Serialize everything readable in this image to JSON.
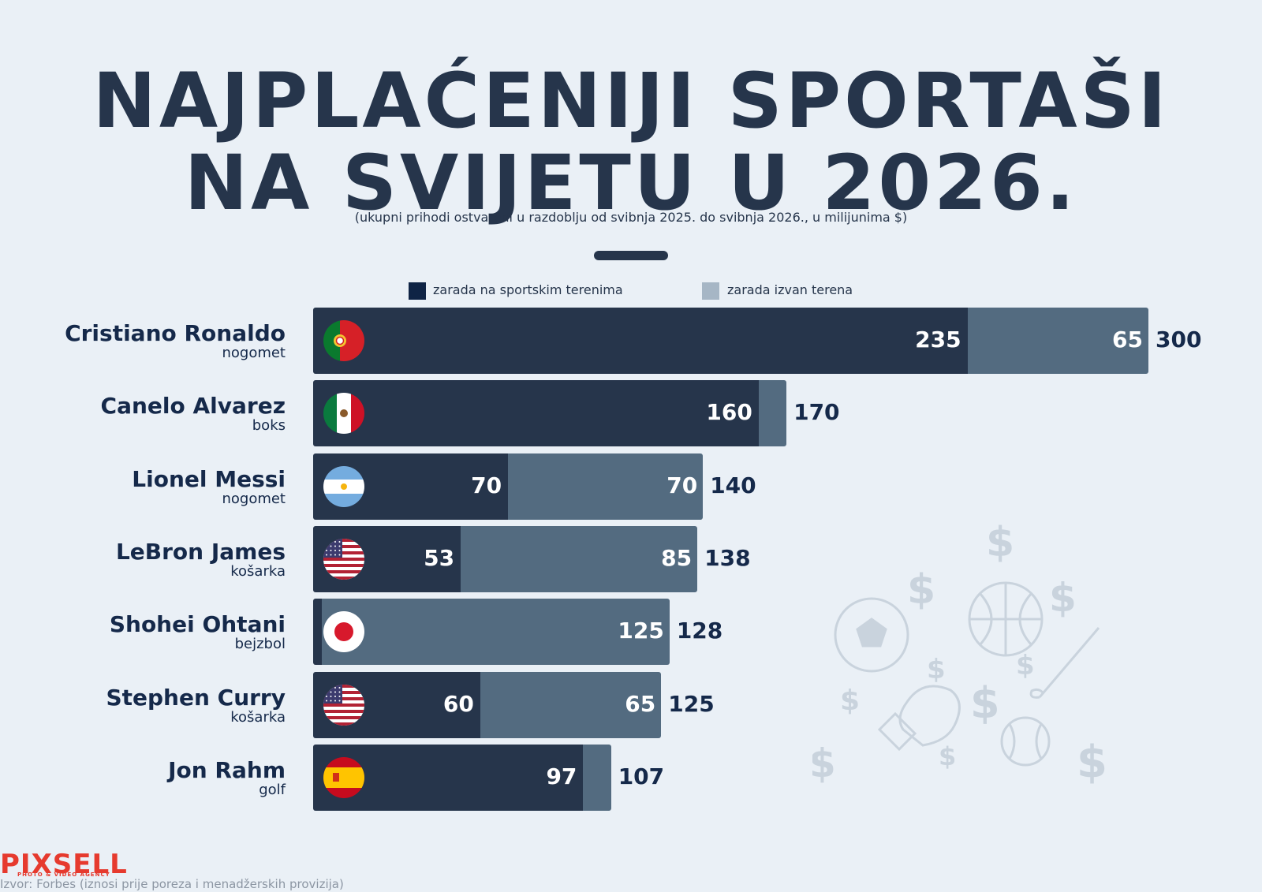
{
  "title": {
    "line1": "NAJPLAĆENIJI SPORTAŠI",
    "line2": "NA SVIJETU U 2026."
  },
  "subtitle": "(ukupni prihodi ostvareni u razdoblju od svibnja 2025. do svibnja 2026., u milijunima $)",
  "legend": {
    "on_field": "zarada na sportskim terenima",
    "off_field": "zarada izvan terena"
  },
  "colors": {
    "on_field": "#26354b",
    "off_field": "#536b80",
    "background": "#eaf0f6",
    "legend_on": "#0f2445",
    "legend_off": "#a6b6c5"
  },
  "chart_data": {
    "type": "bar",
    "orientation": "horizontal",
    "stacked": true,
    "categories": [
      "Cristiano Ronaldo",
      "Canelo Alvarez",
      "Lionel Messi",
      "LeBron James",
      "Shohei Ohtani",
      "Stephen Curry",
      "Jon Rahm"
    ],
    "subcategories": [
      "nogomet",
      "boks",
      "nogomet",
      "košarka",
      "bejzbol",
      "košarka",
      "golf"
    ],
    "flags": [
      "portugal-flag-icon",
      "mexico-flag-icon",
      "argentina-flag-icon",
      "usa-flag-icon",
      "japan-flag-icon",
      "usa-flag-icon",
      "spain-flag-icon"
    ],
    "series": [
      {
        "name": "zarada na sportskim terenima",
        "values": [
          235,
          160,
          70,
          53,
          3,
          60,
          97
        ],
        "labels": [
          "235",
          "160",
          "70",
          "53",
          "",
          "60",
          "97"
        ]
      },
      {
        "name": "zarada izvan terena",
        "values": [
          65,
          10,
          70,
          85,
          125,
          65,
          10
        ],
        "labels": [
          "65",
          "",
          "70",
          "85",
          "125",
          "65",
          ""
        ]
      }
    ],
    "totals": [
      "300",
      "170",
      "140",
      "138",
      "128",
      "125",
      "107"
    ],
    "xlim": [
      0,
      300
    ],
    "legend_position": "top"
  },
  "source": "Izvor: Forbes (iznosi prije poreza i menadžerskih provizija)",
  "logo": {
    "name": "PIXSELL",
    "tagline": "PHOTO & VIDEO AGENCY"
  }
}
